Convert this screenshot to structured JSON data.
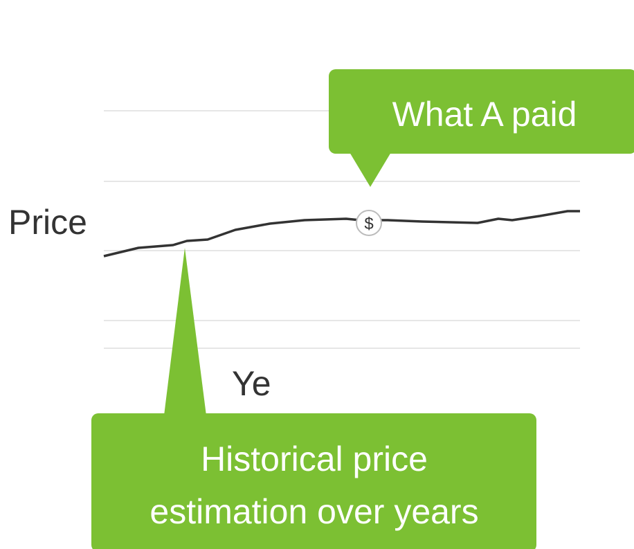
{
  "axis_labels": {
    "y": "Price",
    "x": "Ye"
  },
  "marker": {
    "icon": "$"
  },
  "callouts": [
    {
      "lines": [
        "What A paid"
      ]
    },
    {
      "lines": [
        "Historical price",
        "estimation over years"
      ]
    }
  ]
}
